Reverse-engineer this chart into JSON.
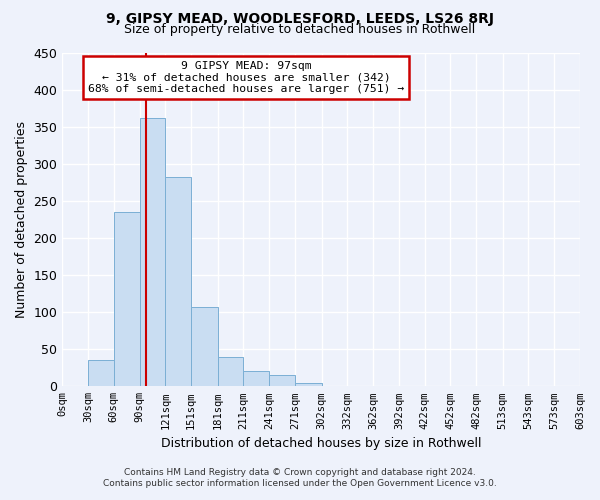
{
  "title_line1": "9, GIPSY MEAD, WOODLESFORD, LEEDS, LS26 8RJ",
  "title_line2": "Size of property relative to detached houses in Rothwell",
  "xlabel": "Distribution of detached houses by size in Rothwell",
  "ylabel": "Number of detached properties",
  "footer_line1": "Contains HM Land Registry data © Crown copyright and database right 2024.",
  "footer_line2": "Contains public sector information licensed under the Open Government Licence v3.0.",
  "bar_edges": [
    0,
    30,
    60,
    90,
    120,
    150,
    181,
    211,
    241,
    271,
    302,
    332,
    362,
    392,
    422,
    452,
    482,
    513,
    543,
    573,
    603
  ],
  "bar_heights": [
    0,
    35,
    235,
    362,
    282,
    107,
    40,
    20,
    15,
    5,
    0,
    0,
    0,
    0,
    0,
    0,
    0,
    0,
    0,
    0
  ],
  "bar_color": "#c9ddf2",
  "bar_edge_color": "#7bafd4",
  "vline_x": 97,
  "vline_color": "#cc0000",
  "ylim": [
    0,
    450
  ],
  "annotation_title": "9 GIPSY MEAD: 97sqm",
  "annotation_line2": "← 31% of detached houses are smaller (342)",
  "annotation_line3": "68% of semi-detached houses are larger (751) →",
  "annotation_box_color": "#ffffff",
  "annotation_box_edge": "#cc0000",
  "xtick_labels": [
    "0sqm",
    "30sqm",
    "60sqm",
    "90sqm",
    "121sqm",
    "151sqm",
    "181sqm",
    "211sqm",
    "241sqm",
    "271sqm",
    "302sqm",
    "332sqm",
    "362sqm",
    "392sqm",
    "422sqm",
    "452sqm",
    "482sqm",
    "513sqm",
    "543sqm",
    "573sqm",
    "603sqm"
  ],
  "background_color": "#eef2fb",
  "grid_color": "#ffffff",
  "yticks": [
    0,
    50,
    100,
    150,
    200,
    250,
    300,
    350,
    400,
    450
  ]
}
